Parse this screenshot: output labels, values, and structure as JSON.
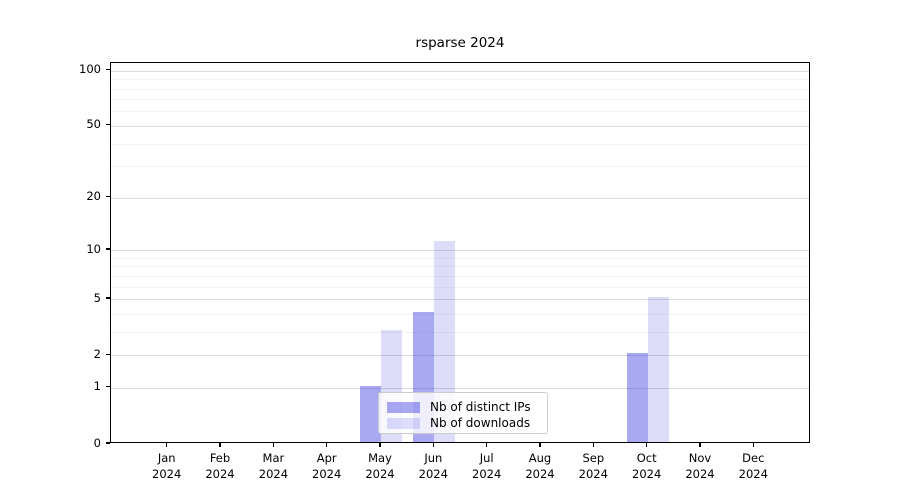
{
  "chart_data": {
    "type": "bar",
    "title": "rsparse 2024",
    "categories": [
      "Jan",
      "Feb",
      "Mar",
      "Apr",
      "May",
      "Jun",
      "Jul",
      "Aug",
      "Sep",
      "Oct",
      "Nov",
      "Dec"
    ],
    "year_label": "2024",
    "series": [
      {
        "name": "Nb of distinct IPs",
        "fill": "rgba(30,30,220,0.38)",
        "hex": "#a9a9f2",
        "values": [
          0,
          0,
          0,
          0,
          1,
          4,
          0,
          0,
          0,
          2,
          0,
          0
        ]
      },
      {
        "name": "Nb of downloads",
        "fill": "rgba(30,30,220,0.15)",
        "hex": "#dcdcf8",
        "values": [
          0,
          0,
          0,
          0,
          3,
          11,
          0,
          0,
          0,
          5,
          0,
          0
        ]
      }
    ],
    "yscale": "log1p",
    "ylim": [
      0,
      110
    ],
    "y_ticks": [
      0,
      1,
      2,
      5,
      10,
      20,
      50,
      100
    ],
    "y_minor_gridlines": [
      3,
      4,
      6,
      7,
      8,
      9,
      30,
      40,
      60,
      70,
      80,
      90
    ],
    "grid": true,
    "legend_position": "lower center",
    "axis_color": "#000000",
    "grid_major_color": "#dcdcdc",
    "grid_minor_color": "#f2f2f2"
  }
}
